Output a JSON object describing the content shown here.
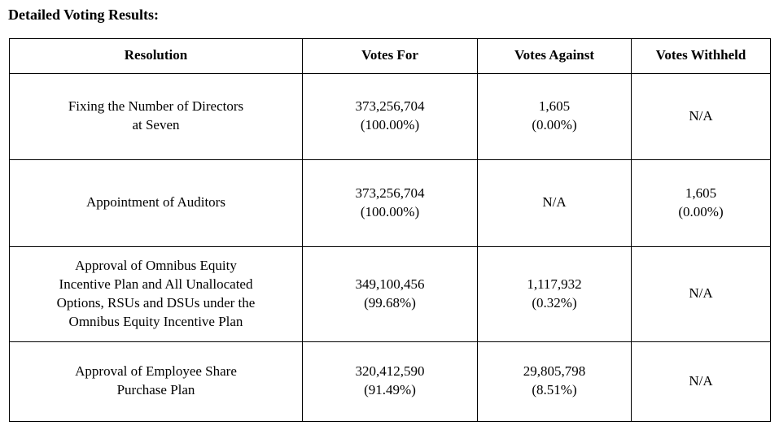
{
  "title": "Detailed Voting Results:",
  "table": {
    "headers": [
      "Resolution",
      "Votes For",
      "Votes Against",
      "Votes Withheld"
    ],
    "rows": [
      {
        "resolution": "Fixing the Number of Directors\nat Seven",
        "votes_for": "373,256,704\n(100.00%)",
        "votes_against": "1,605\n(0.00%)",
        "votes_withheld": "N/A"
      },
      {
        "resolution": "Appointment of Auditors",
        "votes_for": "373,256,704\n(100.00%)",
        "votes_against": "N/A",
        "votes_withheld": "1,605\n(0.00%)"
      },
      {
        "resolution": "Approval of Omnibus Equity\nIncentive Plan and All Unallocated\nOptions, RSUs and DSUs under the\nOmnibus Equity Incentive Plan",
        "votes_for": "349,100,456\n(99.68%)",
        "votes_against": "1,117,932\n(0.32%)",
        "votes_withheld": "N/A"
      },
      {
        "resolution": "Approval of Employee Share\nPurchase Plan",
        "votes_for": "320,412,590\n(91.49%)",
        "votes_against": "29,805,798\n(8.51%)",
        "votes_withheld": "N/A"
      }
    ]
  }
}
